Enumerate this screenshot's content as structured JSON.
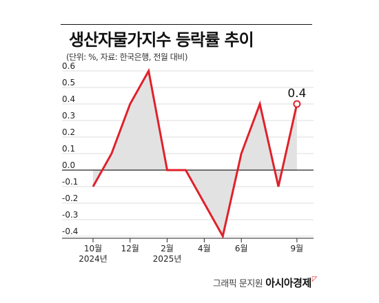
{
  "title": "생산자물가지수 등락률 추이",
  "subtitle": "(단위: %, 자료: 한국은행, 전월 대비)",
  "credit": {
    "prefix": "그래픽 문지원",
    "brand": "아시아경제",
    "mark": "◸"
  },
  "colors": {
    "line": "#e0202a",
    "area": "#e2e2e2",
    "axis": "#222222",
    "grid": "#dddddd",
    "tick_text": "#222222"
  },
  "chart_data": {
    "type": "area",
    "x": [
      "2024-10",
      "2024-11",
      "2024-12",
      "2025-01",
      "2025-02",
      "2025-03",
      "2025-04",
      "2025-05",
      "2025-06",
      "2025-07",
      "2025-08",
      "2025-09"
    ],
    "x_tick_labels": [
      {
        "index": 0,
        "lines": [
          "10월",
          "2024년"
        ]
      },
      {
        "index": 2,
        "lines": [
          "12월"
        ]
      },
      {
        "index": 4,
        "lines": [
          "2월",
          "2025년"
        ]
      },
      {
        "index": 6,
        "lines": [
          "4월"
        ]
      },
      {
        "index": 8,
        "lines": [
          "6월"
        ]
      },
      {
        "index": 11,
        "lines": [
          "9월"
        ]
      }
    ],
    "series": [
      {
        "values": [
          -0.1,
          0.1,
          0.4,
          0.6,
          0.0,
          0.0,
          -0.2,
          -0.4,
          0.1,
          0.4,
          -0.1,
          0.4
        ]
      }
    ],
    "annotations": [
      {
        "index": 11,
        "text": "0.4"
      }
    ],
    "y_ticks": [
      "0.6",
      "0.5",
      "0.4",
      "0.3",
      "0.2",
      "0.1",
      "0.0",
      "-0.1",
      "-0.2",
      "-0.3",
      "-0.4"
    ],
    "y_tick_values": [
      0.6,
      0.5,
      0.4,
      0.3,
      0.2,
      0.1,
      0.0,
      -0.1,
      -0.2,
      -0.3,
      -0.4
    ],
    "ylim": [
      -0.4,
      0.6
    ],
    "grid": true,
    "xlabel": "",
    "ylabel": ""
  }
}
